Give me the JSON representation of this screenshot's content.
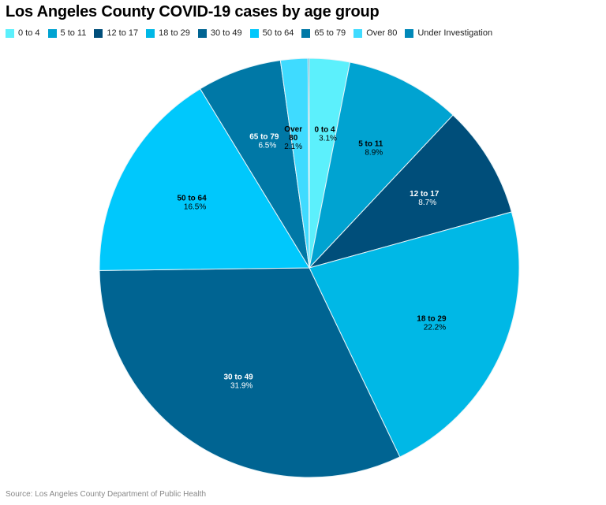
{
  "chart_data": {
    "type": "pie",
    "title": "Los Angeles County COVID-19 cases by age group",
    "legend_position": "top-left",
    "start_angle": "top, clockwise",
    "slices": [
      {
        "label": "0 to 4",
        "value": 3.1,
        "display": "3.1%",
        "color": "#5cf0fc",
        "text_color": "#000000"
      },
      {
        "label": "5 to 11",
        "value": 8.9,
        "display": "8.9%",
        "color": "#00a3d1",
        "text_color": "#000000"
      },
      {
        "label": "12 to 17",
        "value": 8.7,
        "display": "8.7%",
        "color": "#004e7a",
        "text_color": "#ffffff"
      },
      {
        "label": "18 to 29",
        "value": 22.2,
        "display": "22.2%",
        "color": "#00b8e6",
        "text_color": "#000000"
      },
      {
        "label": "30 to 49",
        "value": 31.9,
        "display": "31.9%",
        "color": "#006492",
        "text_color": "#ffffff"
      },
      {
        "label": "50 to 64",
        "value": 16.5,
        "display": "16.5%",
        "color": "#00c8fc",
        "text_color": "#000000"
      },
      {
        "label": "65 to 79",
        "value": 6.5,
        "display": "6.5%",
        "color": "#0078a6",
        "text_color": "#ffffff"
      },
      {
        "label": "Over 80",
        "value": 2.1,
        "display": "2.1%",
        "color": "#3fdbff",
        "text_color": "#000000"
      },
      {
        "label": "Under Investigation",
        "value": 0.1,
        "display": "",
        "color": "#0088b8",
        "text_color": "#ffffff"
      }
    ]
  },
  "source": "Source: Los Angeles County Department of Public Health"
}
